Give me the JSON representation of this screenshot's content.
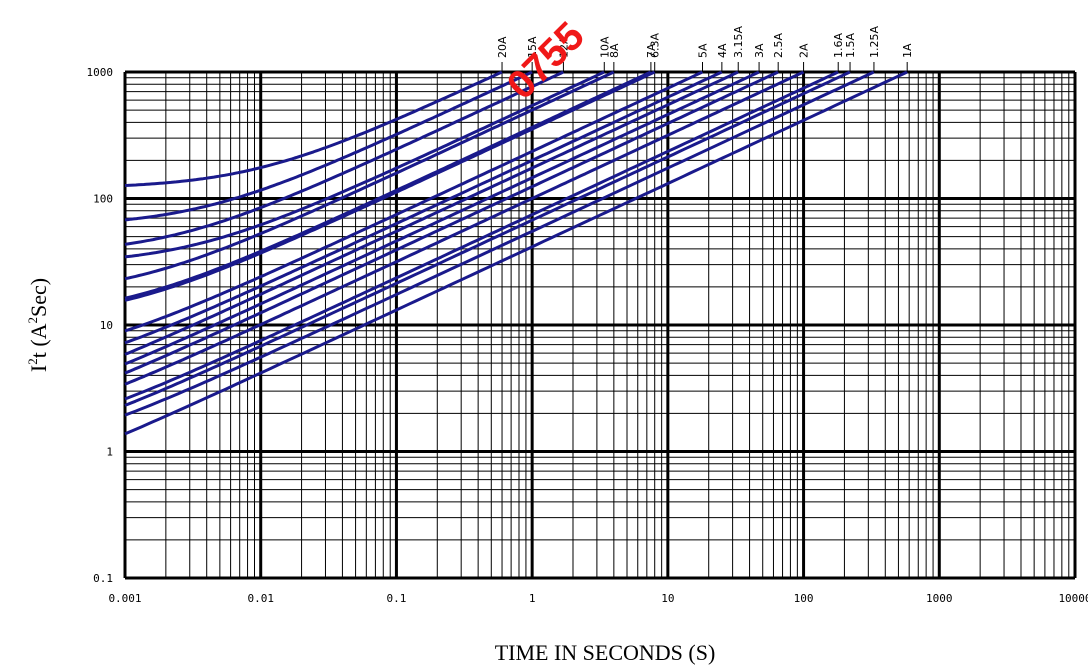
{
  "chart_data": {
    "type": "line",
    "title": "",
    "xlabel": "TIME IN SECONDS  (S)",
    "ylabel_base": "I",
    "ylabel_sup": "2",
    "ylabel_rest": "t (A",
    "ylabel_sup2": "2",
    "ylabel_end": "Sec)",
    "x_scale": "log",
    "y_scale": "log",
    "xlim": [
      0.001,
      10000
    ],
    "ylim": [
      0.1,
      1000
    ],
    "grid": true,
    "x_ticks": [
      "0.001",
      "0.01",
      "0.1",
      "1",
      "10",
      "100",
      "1000",
      "10000"
    ],
    "y_ticks": [
      "0.1",
      "1",
      "10",
      "100",
      "1000"
    ],
    "watermark": "0755",
    "series": [
      {
        "name": "20A",
        "plateau": 120,
        "tmax": 0.6
      },
      {
        "name": "15A",
        "plateau": 60,
        "tmax": 1.0
      },
      {
        "name": "12A",
        "plateau": 36,
        "tmax": 1.7
      },
      {
        "name": "10A",
        "plateau": 30,
        "tmax": 3.4
      },
      {
        "name": "8A",
        "plateau": 17,
        "tmax": 4.0
      },
      {
        "name": "7A",
        "plateau": 11.5,
        "tmax": 7.5
      },
      {
        "name": "6.3A",
        "plateau": 11,
        "tmax": 8.0
      },
      {
        "name": "5A",
        "plateau": 5,
        "tmax": 18
      },
      {
        "name": "4A",
        "plateau": 3.5,
        "tmax": 25
      },
      {
        "name": "3.15A",
        "plateau": 2.0,
        "tmax": 33
      },
      {
        "name": "3A",
        "plateau": 1.7,
        "tmax": 47
      },
      {
        "name": "2.5A",
        "plateau": 1.4,
        "tmax": 65
      },
      {
        "name": "2A",
        "plateau": 1.25,
        "tmax": 100
      },
      {
        "name": "1.6A",
        "plateau": 1.1,
        "tmax": 180
      },
      {
        "name": "1.5A",
        "plateau": 0.9,
        "tmax": 220
      },
      {
        "name": "1.25A",
        "plateau": 0.85,
        "tmax": 330
      },
      {
        "name": "1A",
        "plateau": 0.42,
        "tmax": 580
      }
    ]
  }
}
